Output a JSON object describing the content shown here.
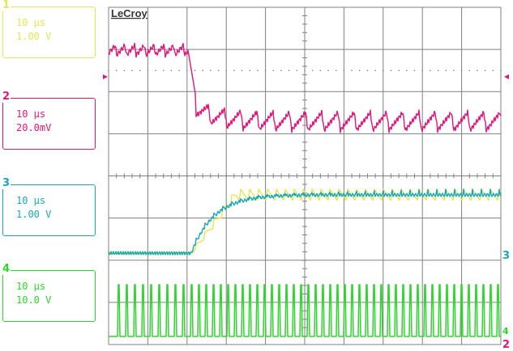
{
  "brand": "LeCroy",
  "channels": [
    {
      "number": "1",
      "timebase": "10 µs",
      "scale": "1.00 V",
      "color": "#e6e65a"
    },
    {
      "number": "2",
      "timebase": "10 µs",
      "scale": "20.0mV",
      "color": "#e0177a"
    },
    {
      "number": "3",
      "timebase": "10 µs",
      "scale": "1.00 V",
      "color": "#17a8b4"
    },
    {
      "number": "4",
      "timebase": "10 µs",
      "scale": "10.0 V",
      "color": "#2dd62d"
    }
  ],
  "right_markers": {
    "ch3": "3",
    "ch4": "4",
    "ch2": "2"
  },
  "colors": {
    "grid": "#808080",
    "background": "#ffffff"
  }
}
